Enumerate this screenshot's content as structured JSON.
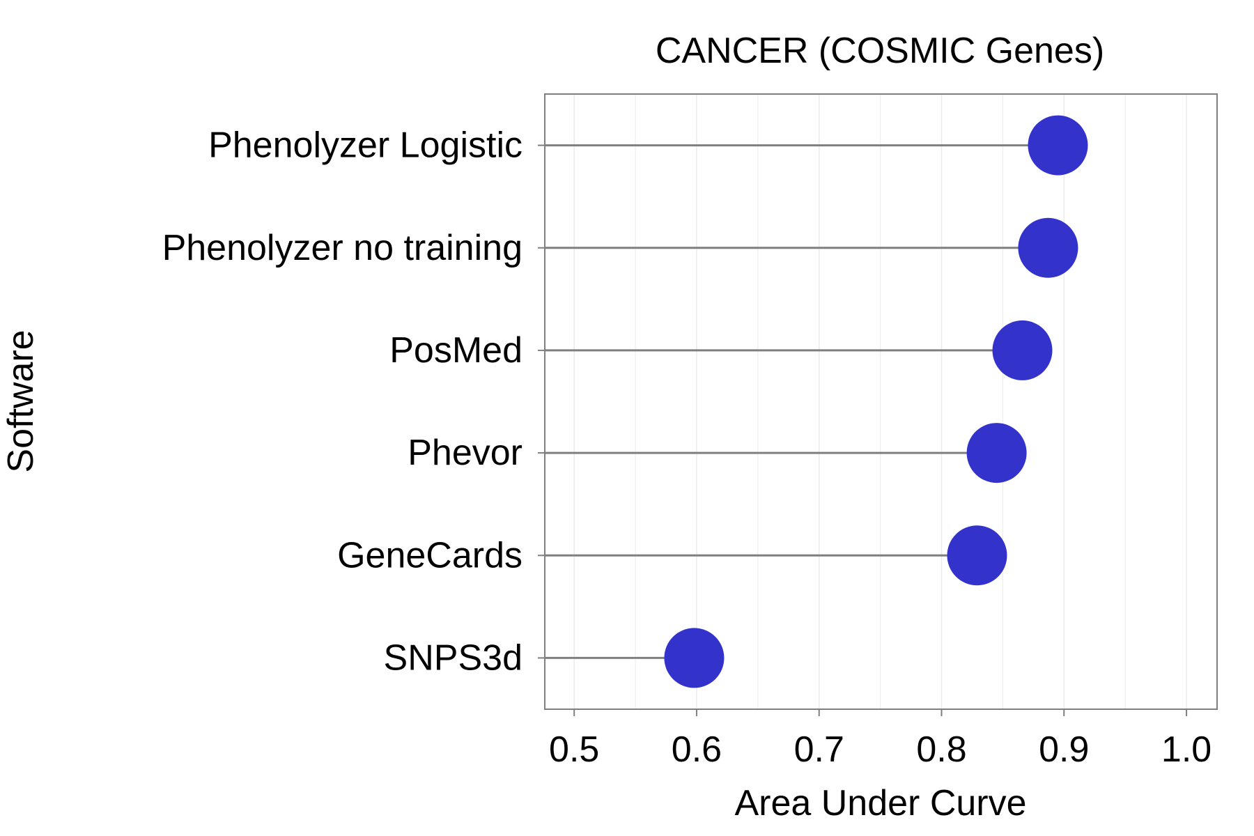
{
  "chart_data": {
    "type": "lollipop",
    "title": "CANCER (COSMIC Genes)",
    "xlabel": "Area Under Curve",
    "ylabel": "Software",
    "xlim": [
      0.476,
      1.025
    ],
    "xticks": [
      "0.5",
      "0.6",
      "0.7",
      "0.8",
      "0.9",
      "1.0"
    ],
    "xtick_values": [
      0.5,
      0.6,
      0.7,
      0.8,
      0.9,
      1.0
    ],
    "minor_xticks": [
      0.55,
      0.65,
      0.75,
      0.85,
      0.95
    ],
    "grid": true,
    "categories": [
      "Phenolyzer Logistic",
      "Phenolyzer no training",
      "PosMed",
      "Phevor",
      "GeneCards",
      "SNPS3d"
    ],
    "values": [
      0.895,
      0.887,
      0.866,
      0.845,
      0.829,
      0.598
    ],
    "colors": {
      "point": "#3333CC",
      "stem": "#7f7f7f",
      "panel_border": "#7f7f7f",
      "grid": "#ebebeb"
    }
  }
}
